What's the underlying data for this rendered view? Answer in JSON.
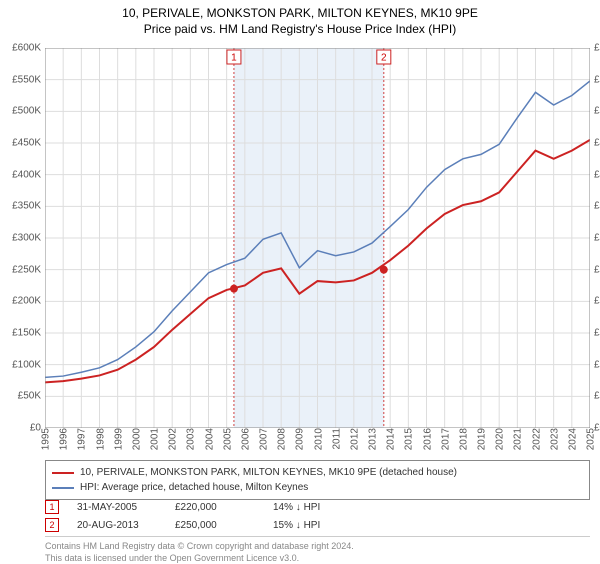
{
  "title_line1": "10, PERIVALE, MONKSTON PARK, MILTON KEYNES, MK10 9PE",
  "title_line2": "Price paid vs. HM Land Registry's House Price Index (HPI)",
  "chart": {
    "type": "line",
    "background_color": "#ffffff",
    "grid_color": "#dddddd",
    "band_color": "#eaf1f9",
    "band_border_color": "#d04040",
    "axis_color": "#888888",
    "x_years": [
      1995,
      1996,
      1997,
      1998,
      1999,
      2000,
      2001,
      2002,
      2003,
      2004,
      2005,
      2006,
      2007,
      2008,
      2009,
      2010,
      2011,
      2012,
      2013,
      2014,
      2015,
      2016,
      2017,
      2018,
      2019,
      2020,
      2021,
      2022,
      2023,
      2024,
      2025
    ],
    "y_min": 0,
    "y_max": 600000,
    "y_step": 50000,
    "y_tick_labels": [
      "£0",
      "£50K",
      "£100K",
      "£150K",
      "£200K",
      "£250K",
      "£300K",
      "£350K",
      "£400K",
      "£450K",
      "£500K",
      "£550K",
      "£600K"
    ],
    "x_min": 1995,
    "x_max": 2025,
    "series": [
      {
        "name": "property",
        "color": "#cc2222",
        "width": 2,
        "points": [
          [
            1995,
            72000
          ],
          [
            1996,
            74000
          ],
          [
            1997,
            78000
          ],
          [
            1998,
            83000
          ],
          [
            1999,
            92000
          ],
          [
            2000,
            108000
          ],
          [
            2001,
            128000
          ],
          [
            2002,
            155000
          ],
          [
            2003,
            180000
          ],
          [
            2004,
            205000
          ],
          [
            2005,
            218000
          ],
          [
            2006,
            225000
          ],
          [
            2007,
            245000
          ],
          [
            2008,
            252000
          ],
          [
            2009,
            212000
          ],
          [
            2010,
            232000
          ],
          [
            2011,
            230000
          ],
          [
            2012,
            233000
          ],
          [
            2013,
            245000
          ],
          [
            2014,
            265000
          ],
          [
            2015,
            288000
          ],
          [
            2016,
            315000
          ],
          [
            2017,
            338000
          ],
          [
            2018,
            352000
          ],
          [
            2019,
            358000
          ],
          [
            2020,
            372000
          ],
          [
            2021,
            405000
          ],
          [
            2022,
            438000
          ],
          [
            2023,
            425000
          ],
          [
            2024,
            438000
          ],
          [
            2025,
            455000
          ]
        ]
      },
      {
        "name": "hpi",
        "color": "#5b7fb9",
        "width": 1.5,
        "points": [
          [
            1995,
            80000
          ],
          [
            1996,
            82000
          ],
          [
            1997,
            88000
          ],
          [
            1998,
            95000
          ],
          [
            1999,
            108000
          ],
          [
            2000,
            128000
          ],
          [
            2001,
            152000
          ],
          [
            2002,
            185000
          ],
          [
            2003,
            215000
          ],
          [
            2004,
            245000
          ],
          [
            2005,
            258000
          ],
          [
            2006,
            268000
          ],
          [
            2007,
            298000
          ],
          [
            2008,
            308000
          ],
          [
            2009,
            253000
          ],
          [
            2010,
            280000
          ],
          [
            2011,
            272000
          ],
          [
            2012,
            278000
          ],
          [
            2013,
            292000
          ],
          [
            2014,
            318000
          ],
          [
            2015,
            345000
          ],
          [
            2016,
            380000
          ],
          [
            2017,
            408000
          ],
          [
            2018,
            425000
          ],
          [
            2019,
            432000
          ],
          [
            2020,
            448000
          ],
          [
            2021,
            490000
          ],
          [
            2022,
            530000
          ],
          [
            2023,
            510000
          ],
          [
            2024,
            525000
          ],
          [
            2025,
            548000
          ]
        ]
      }
    ],
    "sale_markers": [
      {
        "index": 1,
        "year": 2005.4,
        "price": 220000
      },
      {
        "index": 2,
        "year": 2013.65,
        "price": 250000
      }
    ],
    "marker_color": "#cc2222",
    "marker_box_stroke": "#cc2222"
  },
  "legend": {
    "items": [
      {
        "color": "#cc2222",
        "label": "10, PERIVALE, MONKSTON PARK, MILTON KEYNES, MK10 9PE (detached house)"
      },
      {
        "color": "#5b7fb9",
        "label": "HPI: Average price, detached house, Milton Keynes"
      }
    ]
  },
  "sales": [
    {
      "index": "1",
      "date": "31-MAY-2005",
      "price": "£220,000",
      "pct": "14% ↓ HPI"
    },
    {
      "index": "2",
      "date": "20-AUG-2013",
      "price": "£250,000",
      "pct": "15% ↓ HPI"
    }
  ],
  "footer_line1": "Contains HM Land Registry data © Crown copyright and database right 2024.",
  "footer_line2": "This data is licensed under the Open Government Licence v3.0."
}
